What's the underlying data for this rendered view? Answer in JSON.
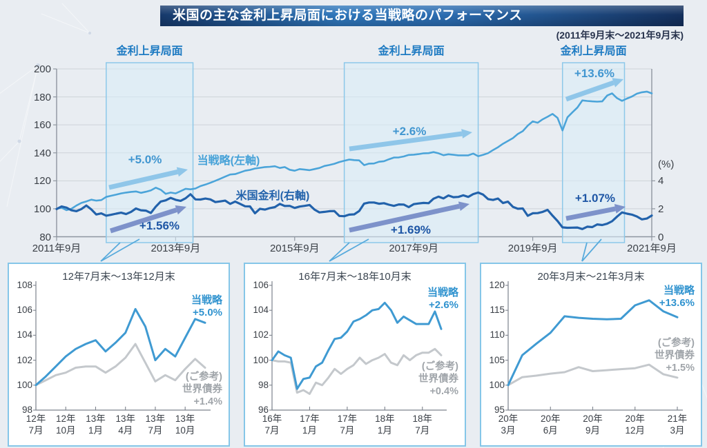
{
  "page": {
    "title": "米国の主な金利上昇局面における当戦略のパフォーマンス",
    "subtitle": "(2011年9月末～2021年9月末)"
  },
  "colors": {
    "page_bg": "#e9edf2",
    "title_bar_left": "#16396b",
    "title_bar_mid": "#2f77bb",
    "title_bar_right": "#132f5c",
    "strategy_line": "#4ba4d9",
    "rate_line": "#2262ab",
    "bonds_line": "#c4c8cc",
    "sub_strategy_line": "#3f9ad2",
    "region_fill": "#d9ecf8",
    "region_border": "#8cc8e9",
    "region_label": "#1d7ac2",
    "arrow_light": "#8fc6e9",
    "arrow_dark": "#7d92ca",
    "grid": "#cdd2d8",
    "axis": "#8e959f",
    "connector": "#57aadc"
  },
  "chart_data": [
    {
      "id": "main",
      "type": "line",
      "x_ticks": [
        {
          "m": 0,
          "label": "2011年9月"
        },
        {
          "m": 24,
          "label": "2013年9月"
        },
        {
          "m": 48,
          "label": "2015年9月"
        },
        {
          "m": 72,
          "label": "2017年9月"
        },
        {
          "m": 96,
          "label": "2019年9月"
        },
        {
          "m": 120,
          "label": "2021年9月"
        }
      ],
      "left_axis": {
        "min": 80,
        "max": 200,
        "ticks": [
          200,
          180,
          160,
          140,
          120,
          100,
          80
        ]
      },
      "right_axis": {
        "label": "(%)",
        "min": 0,
        "max": 12,
        "ticks": [
          4,
          2,
          0
        ]
      },
      "regions": [
        {
          "label": "金利上昇局面",
          "start": 10,
          "end": 27.5,
          "strategy_gain": "+5.0%",
          "rate_gain": "+1.56%"
        },
        {
          "label": "金利上昇局面",
          "start": 58,
          "end": 85,
          "strategy_gain": "+2.6%",
          "rate_gain": "+1.69%"
        },
        {
          "label": "金利上昇局面",
          "start": 102,
          "end": 114.5,
          "strategy_gain": "+13.6%",
          "rate_gain": "+1.07%"
        }
      ],
      "series": [
        {
          "name": "当戦略(左軸)",
          "axis": "left",
          "values": [
            100.0,
            100.8,
            99.0,
            100.0,
            102.3,
            104.2,
            105.3,
            106.5,
            105.8,
            106.2,
            108.5,
            109.3,
            110.1,
            111.0,
            111.6,
            112.1,
            112.4,
            111.4,
            112.2,
            113.1,
            115.1,
            113.6,
            110.7,
            111.6,
            111.0,
            112.6,
            114.3,
            113.9,
            114.5,
            116.2,
            117.3,
            118.6,
            120.0,
            121.5,
            123.0,
            124.5,
            124.8,
            126.0,
            127.2,
            127.8,
            128.8,
            129.3,
            129.8,
            130.0,
            130.4,
            129.2,
            129.8,
            127.9,
            127.2,
            128.4,
            128.0,
            127.6,
            128.4,
            129.2,
            130.6,
            131.3,
            132.2,
            133.4,
            134.3,
            135.2,
            134.8,
            134.6,
            131.2,
            132.3,
            132.4,
            133.6,
            134.0,
            135.4,
            136.6,
            136.7,
            137.4,
            138.5,
            138.7,
            139.1,
            139.7,
            139.8,
            140.5,
            139.7,
            138.3,
            139.0,
            138.6,
            138.2,
            138.2,
            138.2,
            139.5,
            137.6,
            138.6,
            139.8,
            142.0,
            144.0,
            146.5,
            148.5,
            150.5,
            153.5,
            155.5,
            159.5,
            162.5,
            161.5,
            164.0,
            165.8,
            167.8,
            165.0,
            156.0,
            165.4,
            169.0,
            172.4,
            177.5,
            177.1,
            176.8,
            176.6,
            176.8,
            181.0,
            182.5,
            179.1,
            177.2,
            178.8,
            180.3,
            182.3,
            183.3,
            183.8,
            182.5
          ]
        },
        {
          "name": "米国金利(右軸)",
          "axis": "right",
          "values": [
            1.98,
            2.17,
            2.08,
            1.89,
            1.83,
            1.98,
            2.23,
            1.95,
            1.59,
            1.67,
            1.51,
            1.57,
            1.65,
            1.72,
            1.62,
            1.78,
            2.02,
            1.89,
            1.87,
            1.7,
            2.16,
            2.52,
            2.6,
            2.78,
            2.64,
            2.57,
            2.75,
            3.04,
            2.67,
            2.66,
            2.73,
            2.67,
            2.48,
            2.53,
            2.58,
            2.35,
            2.52,
            2.35,
            2.18,
            2.17,
            1.68,
            2.0,
            1.94,
            2.05,
            2.12,
            2.35,
            2.2,
            2.21,
            2.06,
            2.16,
            2.21,
            2.27,
            1.94,
            1.74,
            1.78,
            1.83,
            1.84,
            1.49,
            1.47,
            1.58,
            1.6,
            1.84,
            2.37,
            2.45,
            2.45,
            2.36,
            2.4,
            2.29,
            2.21,
            2.31,
            2.3,
            2.12,
            2.33,
            2.38,
            2.42,
            2.4,
            2.72,
            2.87,
            2.74,
            2.95,
            2.83,
            2.85,
            2.96,
            2.85,
            3.05,
            3.16,
            3.01,
            2.69,
            2.63,
            2.73,
            2.41,
            2.51,
            2.14,
            2.0,
            2.02,
            1.5,
            1.68,
            1.69,
            1.78,
            1.92,
            1.51,
            1.13,
            0.67,
            0.64,
            0.65,
            0.66,
            0.55,
            0.72,
            0.69,
            0.88,
            0.84,
            0.93,
            1.11,
            1.44,
            1.74,
            1.65,
            1.58,
            1.45,
            1.24,
            1.3,
            1.52
          ]
        }
      ]
    },
    {
      "id": "sub1",
      "type": "line",
      "title": "12年7月末～13年12月末",
      "y_axis": {
        "min": 98,
        "max": 108,
        "ticks": [
          108,
          106,
          104,
          102,
          100,
          98
        ]
      },
      "x_ticks": [
        {
          "i": 0,
          "l1": "12年",
          "l2": "7月"
        },
        {
          "i": 3,
          "l1": "12年",
          "l2": "10月"
        },
        {
          "i": 6,
          "l1": "13年",
          "l2": "1月"
        },
        {
          "i": 9,
          "l1": "13年",
          "l2": "4月"
        },
        {
          "i": 12,
          "l1": "13年",
          "l2": "7月"
        },
        {
          "i": 15,
          "l1": "13年",
          "l2": "10月"
        }
      ],
      "series": [
        {
          "name": "当戦略",
          "gain": "+5.0%",
          "values": [
            100,
            100.7,
            101.5,
            102.3,
            102.9,
            103.3,
            103.6,
            102.7,
            103.4,
            104.2,
            106.1,
            104.7,
            102.0,
            102.9,
            102.3,
            103.8,
            105.3,
            105.0
          ]
        },
        {
          "name_line1": "(ご参考)",
          "name_line2": "世界債券",
          "gain": "+1.4%",
          "values": [
            100,
            100.4,
            100.8,
            101.0,
            101.4,
            101.5,
            101.5,
            101.0,
            101.5,
            102.2,
            103.3,
            101.8,
            100.3,
            100.8,
            100.4,
            101.3,
            102.1,
            101.4
          ]
        }
      ]
    },
    {
      "id": "sub2",
      "type": "line",
      "title": "16年7月末～18年10月末",
      "y_axis": {
        "min": 96,
        "max": 106,
        "ticks": [
          106,
          104,
          102,
          100,
          98,
          96
        ]
      },
      "x_ticks": [
        {
          "i": 0,
          "l1": "16年",
          "l2": "7月"
        },
        {
          "i": 6,
          "l1": "17年",
          "l2": "1月"
        },
        {
          "i": 12,
          "l1": "17年",
          "l2": "7月"
        },
        {
          "i": 18,
          "l1": "18年",
          "l2": "1月"
        },
        {
          "i": 24,
          "l1": "18年",
          "l2": "7月"
        }
      ],
      "series": [
        {
          "name": "当戦略",
          "gain": "+2.6%",
          "values": [
            100,
            100.7,
            100.4,
            100.2,
            97.7,
            98.5,
            98.6,
            99.5,
            99.8,
            100.8,
            101.7,
            101.8,
            102.3,
            103.1,
            103.3,
            103.6,
            104.0,
            104.1,
            104.6,
            104.0,
            103.0,
            103.5,
            103.2,
            102.9,
            102.9,
            102.9,
            103.9,
            102.5
          ]
        },
        {
          "name_line1": "(ご参考)",
          "name_line2": "世界債券",
          "gain": "+0.4%",
          "values": [
            100,
            99.9,
            99.9,
            99.8,
            97.4,
            97.6,
            97.3,
            98.2,
            98.0,
            98.6,
            99.3,
            98.9,
            99.3,
            99.6,
            100.2,
            99.7,
            100.0,
            100.2,
            100.5,
            99.8,
            99.6,
            100.4,
            100.0,
            100.4,
            100.6,
            100.6,
            100.9,
            100.4
          ]
        }
      ]
    },
    {
      "id": "sub3",
      "type": "line",
      "title": "20年3月末～21年3月末",
      "y_axis": {
        "min": 95,
        "max": 120,
        "ticks": [
          120,
          115,
          110,
          105,
          100,
          95
        ]
      },
      "x_ticks": [
        {
          "i": 0,
          "l1": "20年",
          "l2": "3月"
        },
        {
          "i": 3,
          "l1": "20年",
          "l2": "6月"
        },
        {
          "i": 6,
          "l1": "20年",
          "l2": "9月"
        },
        {
          "i": 9,
          "l1": "20年",
          "l2": "12月"
        },
        {
          "i": 12,
          "l1": "21年",
          "l2": "3月"
        }
      ],
      "series": [
        {
          "name": "当戦略",
          "gain": "+13.6%",
          "values": [
            100,
            106.0,
            108.3,
            110.5,
            113.8,
            113.5,
            113.3,
            113.2,
            113.3,
            116.0,
            117.0,
            114.8,
            113.6
          ]
        },
        {
          "name_line1": "(ご参考)",
          "name_line2": "世界債券",
          "gain": "+1.5%",
          "values": [
            100,
            101.6,
            101.9,
            102.3,
            102.6,
            103.6,
            102.8,
            103.0,
            103.2,
            103.4,
            104.1,
            102.2,
            101.5
          ]
        }
      ]
    }
  ]
}
